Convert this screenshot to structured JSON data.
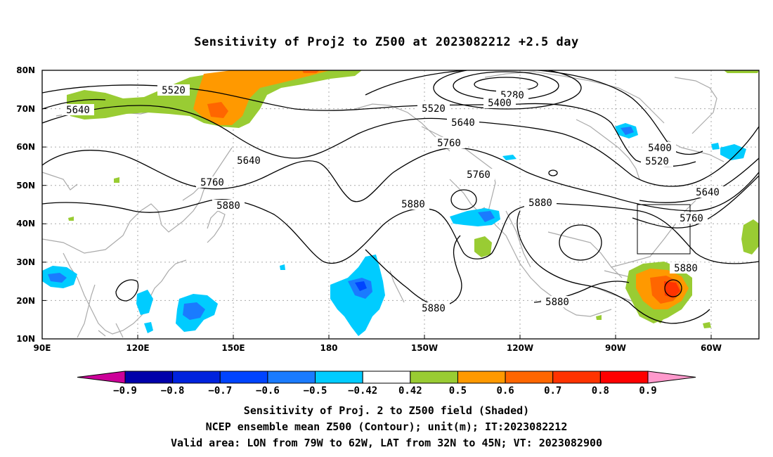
{
  "title": "Sensitivity of Proj2 to Z500 at 2023082212 +2.5 day",
  "lat_labels": [
    "80N",
    "70N",
    "60N",
    "50N",
    "40N",
    "30N",
    "20N",
    "10N"
  ],
  "lon_labels": [
    "90E",
    "120E",
    "150E",
    "180",
    "150W",
    "120W",
    "90W",
    "60W"
  ],
  "colorbar": {
    "labels": [
      "-0.9",
      "-0.8",
      "-0.7",
      "-0.6",
      "-0.5",
      "-0.42",
      "0.42",
      "0.5",
      "0.6",
      "0.7",
      "0.8",
      "0.9"
    ],
    "colors": [
      "#cc0099",
      "#0000aa",
      "#0022dd",
      "#0044ff",
      "#1a7bff",
      "#00ccff",
      "#ffffff",
      "#99cc33",
      "#ff9900",
      "#ff6600",
      "#ff3300",
      "#ff0000",
      "#ff99cc"
    ]
  },
  "contour_labels": {
    "c5520a": "5520",
    "c5640a": "5640",
    "c5280": "5280",
    "c5400a": "5400",
    "c5520b": "5520",
    "c5640b": "5640",
    "c5760a": "5760",
    "c5640c": "5640",
    "c5760b": "5760",
    "c5880a": "5880",
    "c5760c": "5760",
    "c5880b": "5880",
    "c5880c": "5880",
    "c5400b": "5400",
    "c5520c": "5520",
    "c5640d": "5640",
    "c5760d": "5760",
    "c5880d": "5880",
    "c5880e": "5880",
    "c5880f": "5880"
  },
  "caption": {
    "line1": "Sensitivity of Proj. 2 to Z500 field (Shaded)",
    "line2": "NCEP ensemble mean Z500 (Contour); unit(m); IT:2023082212",
    "line3": "Valid area: LON from 79W to 62W, LAT from 32N to 45N; VT: 2023082900"
  }
}
